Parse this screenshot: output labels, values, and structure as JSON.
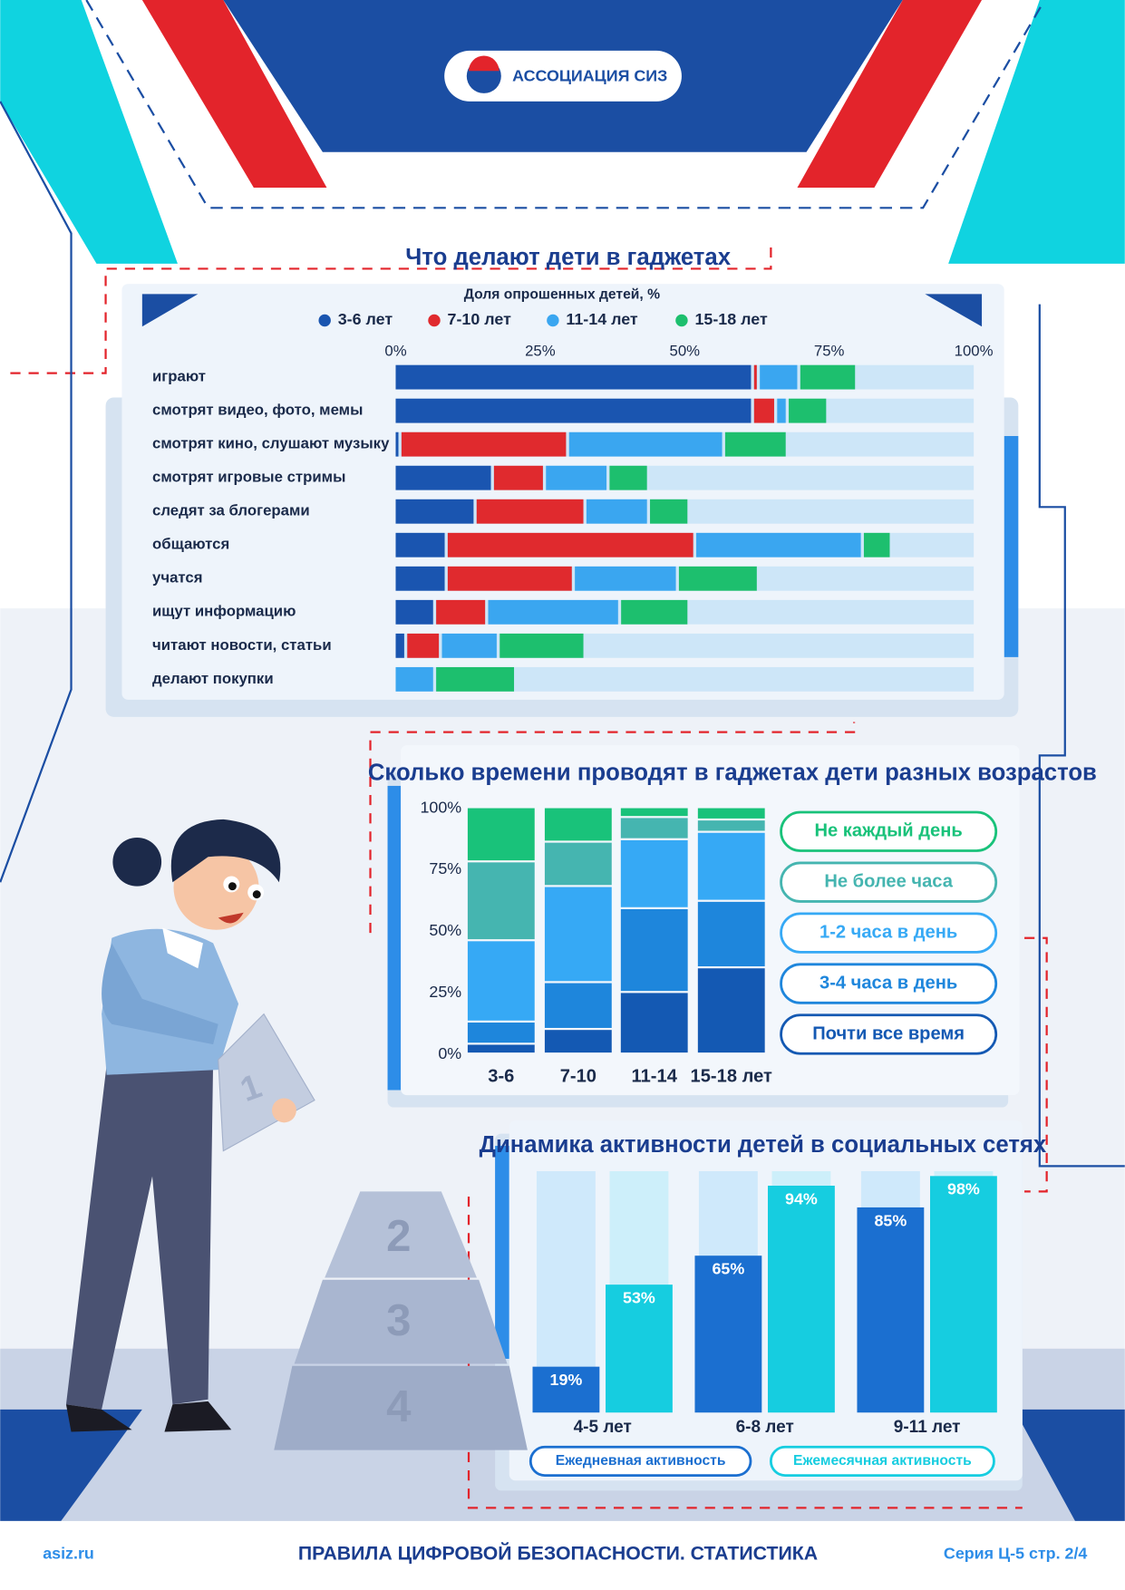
{
  "header": {
    "logo": "АССОЦИАЦИЯ СИЗ"
  },
  "illustration": {
    "sheet": "1",
    "podium": [
      "2",
      "3",
      "4"
    ]
  },
  "footer": {
    "site": "asiz.ru",
    "title": "ПРАВИЛА ЦИФРОВОЙ БЕЗОПАСНОСТИ. СТАТИСТИКА",
    "series": "Серия Ц-5 стр. 2/4"
  },
  "chart_data": [
    {
      "type": "bar",
      "orientation": "horizontal",
      "stacked": true,
      "title": "Что делают дети в гаджетах",
      "subtitle": "Доля опрошенных детей, %",
      "categories": [
        "играют",
        "смотрят видео, фото, мемы",
        "смотрят кино, слушают музыку",
        "смотрят игровые стримы",
        "следят за блогерами",
        "общаются",
        "учатся",
        "ищут информацию",
        "читают новости, статьи",
        "делают покупки"
      ],
      "series": [
        {
          "name": "3-6 лет",
          "color": "#1a55b0",
          "values": [
            62,
            62,
            1,
            17,
            14,
            9,
            9,
            7,
            2,
            0
          ]
        },
        {
          "name": "7-10 лет",
          "color": "#e02a2e",
          "values": [
            1,
            4,
            29,
            9,
            19,
            43,
            22,
            9,
            6,
            0
          ]
        },
        {
          "name": "11-14 лет",
          "color": "#3aa6f0",
          "values": [
            7,
            2,
            27,
            11,
            11,
            29,
            18,
            23,
            10,
            7
          ]
        },
        {
          "name": "15-18 лет",
          "color": "#1dbf6e",
          "values": [
            10,
            7,
            11,
            7,
            7,
            5,
            14,
            12,
            15,
            14
          ]
        }
      ],
      "xlim": [
        0,
        100
      ],
      "xticks": [
        {
          "value": 0,
          "label": "0%"
        },
        {
          "value": 25,
          "label": "25%"
        },
        {
          "value": 50,
          "label": "50%"
        },
        {
          "value": 75,
          "label": "75%"
        },
        {
          "value": 100,
          "label": "100%"
        }
      ],
      "track_color": "#cde6f8"
    },
    {
      "type": "bar",
      "orientation": "vertical",
      "stacked": true,
      "title": "Сколько времени проводят в гаджетах дети разных возрастов",
      "categories": [
        "3-6",
        "7-10",
        "11-14",
        "15-18 лет"
      ],
      "series": [
        {
          "name": "Не каждый день",
          "color": "#19c27a",
          "values": [
            22,
            14,
            4,
            5
          ]
        },
        {
          "name": "Не более часа",
          "color": "#45b5b0",
          "values": [
            32,
            18,
            9,
            5
          ]
        },
        {
          "name": "1-2 часа в день",
          "color": "#36a9f5",
          "values": [
            33,
            39,
            28,
            28
          ]
        },
        {
          "name": "3-4 часа в день",
          "color": "#1e86dc",
          "values": [
            9,
            19,
            34,
            27
          ]
        },
        {
          "name": "Почти все время",
          "color": "#1459b3",
          "values": [
            4,
            10,
            25,
            35
          ]
        }
      ],
      "ylim": [
        0,
        100
      ],
      "yticks": [
        {
          "value": 0,
          "label": "0%"
        },
        {
          "value": 25,
          "label": "25%"
        },
        {
          "value": 50,
          "label": "50%"
        },
        {
          "value": 75,
          "label": "75%"
        },
        {
          "value": 100,
          "label": "100%"
        }
      ]
    },
    {
      "type": "bar",
      "orientation": "vertical",
      "stacked": false,
      "title": "Динамика активности детей в социальных сетях",
      "categories": [
        "4-5 лет",
        "6-8 лет",
        "9-11 лет"
      ],
      "series": [
        {
          "name": "Ежедневная активность",
          "color": "#1b6fd0",
          "track_color": "#cfe9fb",
          "values": [
            19,
            65,
            85
          ],
          "value_labels": [
            "19%",
            "65%",
            "85%"
          ]
        },
        {
          "name": "Ежемесячная активность",
          "color": "#16cde0",
          "track_color": "#cdeffa",
          "values": [
            53,
            94,
            98
          ],
          "value_labels": [
            "53%",
            "94%",
            "98%"
          ]
        }
      ],
      "ylim": [
        0,
        100
      ]
    }
  ]
}
